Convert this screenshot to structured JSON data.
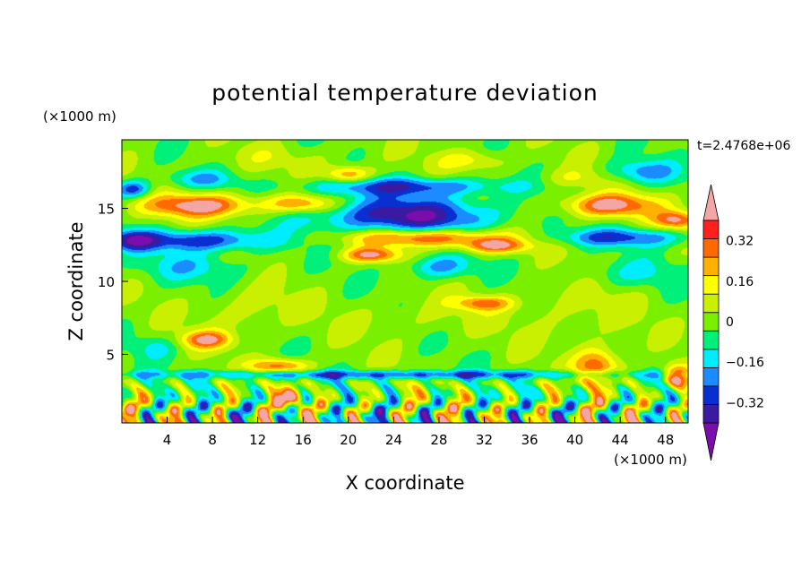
{
  "chart_data": {
    "type": "heatmap",
    "title": "potential temperature deviation",
    "xlabel": "X coordinate",
    "ylabel": "Z coordinate",
    "x_units": "(×1000 m)",
    "y_units": "(×1000 m)",
    "time_label": "t=2.4768e+06",
    "xlim": [
      0,
      50
    ],
    "ylim": [
      0.3,
      19.7
    ],
    "x_ticks": [
      "4",
      "8",
      "12",
      "16",
      "20",
      "24",
      "28",
      "32",
      "36",
      "40",
      "44",
      "48"
    ],
    "y_ticks": [
      "5",
      "10",
      "15"
    ],
    "colorbar": {
      "levels": [
        -0.4,
        -0.32,
        -0.24,
        -0.16,
        -0.08,
        0,
        0.08,
        0.16,
        0.24,
        0.32,
        0.4
      ],
      "tick_labels": [
        "0.32",
        "0.16",
        "0",
        "−0.16",
        "−0.32"
      ],
      "tick_values": [
        0.32,
        0.16,
        0,
        -0.16,
        -0.32
      ],
      "colors": [
        "#7a0dab",
        "#3a1aa0",
        "#0a2fd0",
        "#1b8cff",
        "#00ecff",
        "#00f07a",
        "#7af000",
        "#c8f000",
        "#ffff00",
        "#ffb000",
        "#ff6a00",
        "#ff2020",
        "#f4a6a6"
      ]
    },
    "features": [
      {
        "x": 25,
        "z": 14.5,
        "sx": 8,
        "sz": 1.3,
        "v": -0.42
      },
      {
        "x": 7,
        "z": 12.8,
        "sx": 6,
        "sz": 0.7,
        "v": -0.36
      },
      {
        "x": 1,
        "z": 12.8,
        "sx": 2,
        "sz": 0.7,
        "v": -0.32
      },
      {
        "x": 44,
        "z": 13.0,
        "sx": 6,
        "sz": 0.6,
        "v": -0.3
      },
      {
        "x": 7,
        "z": 15.2,
        "sx": 5,
        "sz": 0.8,
        "v": 0.42
      },
      {
        "x": 16,
        "z": 15.3,
        "sx": 3,
        "sz": 0.6,
        "v": 0.3
      },
      {
        "x": 43,
        "z": 15.2,
        "sx": 4,
        "sz": 0.8,
        "v": 0.42
      },
      {
        "x": 49,
        "z": 14.2,
        "sx": 2,
        "sz": 0.6,
        "v": 0.36
      },
      {
        "x": 27,
        "z": 13.0,
        "sx": 7,
        "sz": 0.6,
        "v": 0.42
      },
      {
        "x": 22,
        "z": 11.8,
        "sx": 2.5,
        "sz": 0.5,
        "v": 0.38
      },
      {
        "x": 33,
        "z": 12.4,
        "sx": 3,
        "sz": 0.5,
        "v": 0.36
      },
      {
        "x": 25,
        "z": 16.5,
        "sx": 9,
        "sz": 0.6,
        "v": -0.3
      },
      {
        "x": 7,
        "z": 17.0,
        "sx": 3,
        "sz": 0.6,
        "v": -0.18
      },
      {
        "x": 1,
        "z": 16.3,
        "sx": 1.5,
        "sz": 0.6,
        "v": -0.35
      },
      {
        "x": 46,
        "z": 17.5,
        "sx": 3,
        "sz": 0.8,
        "v": -0.25
      },
      {
        "x": 20,
        "z": 17.3,
        "sx": 2,
        "sz": 0.6,
        "v": 0.32
      },
      {
        "x": 31,
        "z": 18.3,
        "sx": 3,
        "sz": 0.7,
        "v": 0.16
      },
      {
        "x": 40,
        "z": 17.0,
        "sx": 3,
        "sz": 0.7,
        "v": 0.12
      },
      {
        "x": 14,
        "z": 18.5,
        "sx": 6,
        "sz": 0.8,
        "v": 0.06
      },
      {
        "x": 6,
        "z": 11.0,
        "sx": 5,
        "sz": 1.0,
        "v": -0.15
      },
      {
        "x": 28,
        "z": 11.0,
        "sx": 3,
        "sz": 0.8,
        "v": -0.24
      },
      {
        "x": 45,
        "z": 10.5,
        "sx": 5,
        "sz": 1.0,
        "v": -0.12
      },
      {
        "x": 11,
        "z": 8.0,
        "sx": 4,
        "sz": 1.5,
        "v": 0.1
      },
      {
        "x": 40,
        "z": 8.0,
        "sx": 5,
        "sz": 2.0,
        "v": 0.08
      },
      {
        "x": 26,
        "z": 7.5,
        "sx": 6,
        "sz": 1.3,
        "v": 0.06
      },
      {
        "x": 32,
        "z": 8.5,
        "sx": 2.5,
        "sz": 0.5,
        "v": 0.3
      },
      {
        "x": 7.5,
        "z": 6.0,
        "sx": 2.2,
        "sz": 0.6,
        "v": 0.35
      },
      {
        "x": 3,
        "z": 5.5,
        "sx": 2,
        "sz": 0.8,
        "v": -0.12
      },
      {
        "x": 14,
        "z": 4.2,
        "sx": 2.5,
        "sz": 0.5,
        "v": 0.34
      },
      {
        "x": 42,
        "z": 4.2,
        "sx": 2,
        "sz": 1.2,
        "v": 0.36
      },
      {
        "x": 49,
        "z": 3.5,
        "sx": 1.2,
        "sz": 0.8,
        "v": 0.4
      },
      {
        "x": 15,
        "z": 2.0,
        "sx": 1,
        "sz": 0.8,
        "v": 0.38
      },
      {
        "x": 24,
        "z": 3.6,
        "sx": 25,
        "sz": 0.3,
        "v": -0.3
      }
    ]
  }
}
